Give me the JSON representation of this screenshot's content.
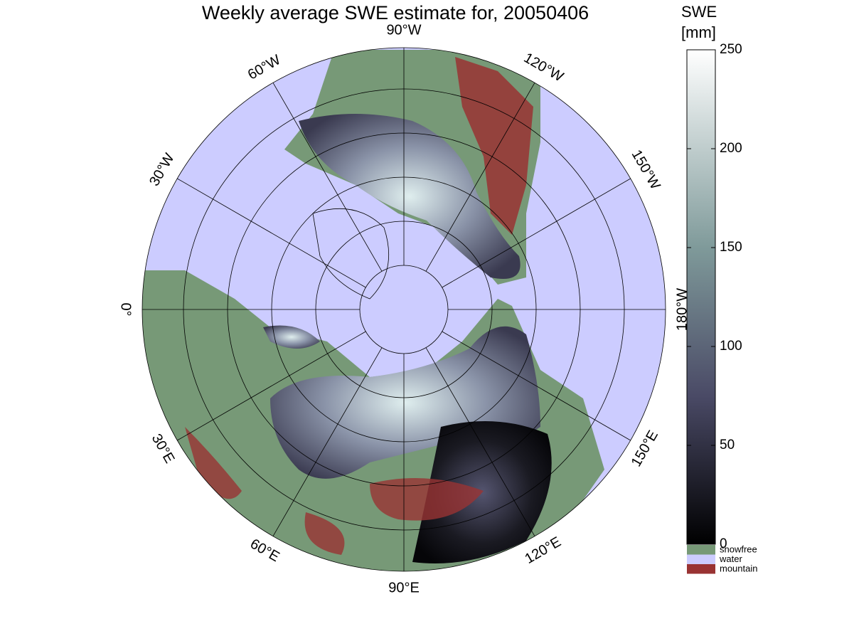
{
  "title": "Weekly average SWE estimate for, 20050406",
  "longitude_labels": [
    "0°",
    "30°E",
    "60°E",
    "90°E",
    "120°E",
    "150°E",
    "180°W",
    "150°W",
    "120°W",
    "90°W",
    "60°W",
    "30°W"
  ],
  "colorbar": {
    "label": [
      "SWE",
      "[mm]"
    ],
    "lim": [
      0,
      250
    ],
    "ticks": [
      0,
      50,
      100,
      150,
      200,
      250
    ]
  },
  "legend": [
    {
      "name": "snowfree",
      "color": "#779977"
    },
    {
      "name": "water",
      "color": "#ccccff"
    },
    {
      "name": "mountain",
      "color": "#993333"
    }
  ]
}
